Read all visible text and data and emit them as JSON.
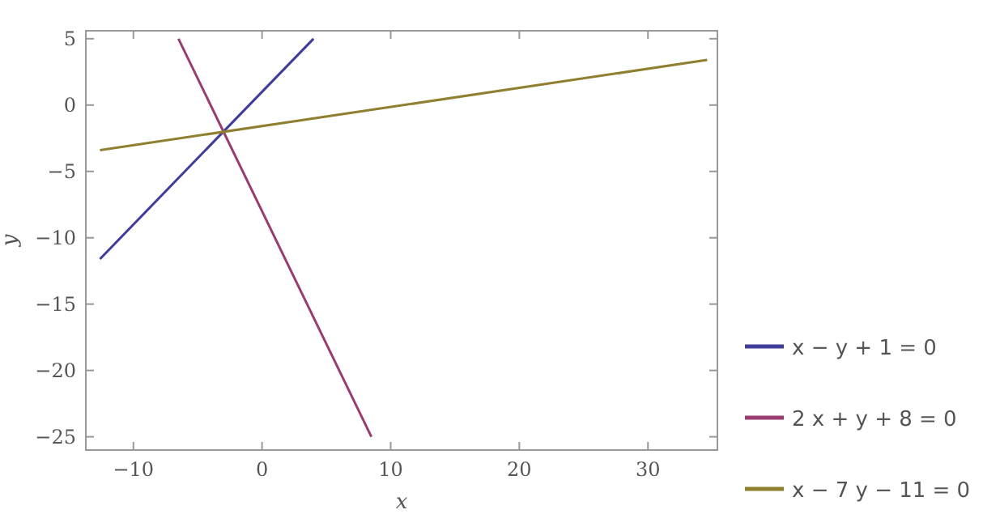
{
  "chart_data": {
    "type": "line",
    "xlabel": "x",
    "ylabel": "y",
    "xlim": [
      -13.7,
      35.4
    ],
    "ylim": [
      -26,
      5.6
    ],
    "xticks": [
      -10,
      0,
      10,
      20,
      30
    ],
    "yticks": [
      -25,
      -20,
      -15,
      -10,
      -5,
      0,
      5
    ],
    "grid": false,
    "legend": "right",
    "marker": "none",
    "line_style": "solid",
    "series": [
      {
        "name": "x − y + 1 = 0",
        "color": "#3f3d99",
        "x": [
          -12.6,
          4
        ],
        "values": [
          -11.6,
          5
        ]
      },
      {
        "name": "2 x + y + 8 = 0",
        "color": "#993d71",
        "x": [
          -6.5,
          8.5
        ],
        "values": [
          5,
          -25
        ]
      },
      {
        "name": "x − 7 y − 11 = 0",
        "color": "#8f7f2e",
        "x": [
          -12.6,
          34.6
        ],
        "values": [
          -3.4,
          3.4
        ]
      }
    ]
  }
}
